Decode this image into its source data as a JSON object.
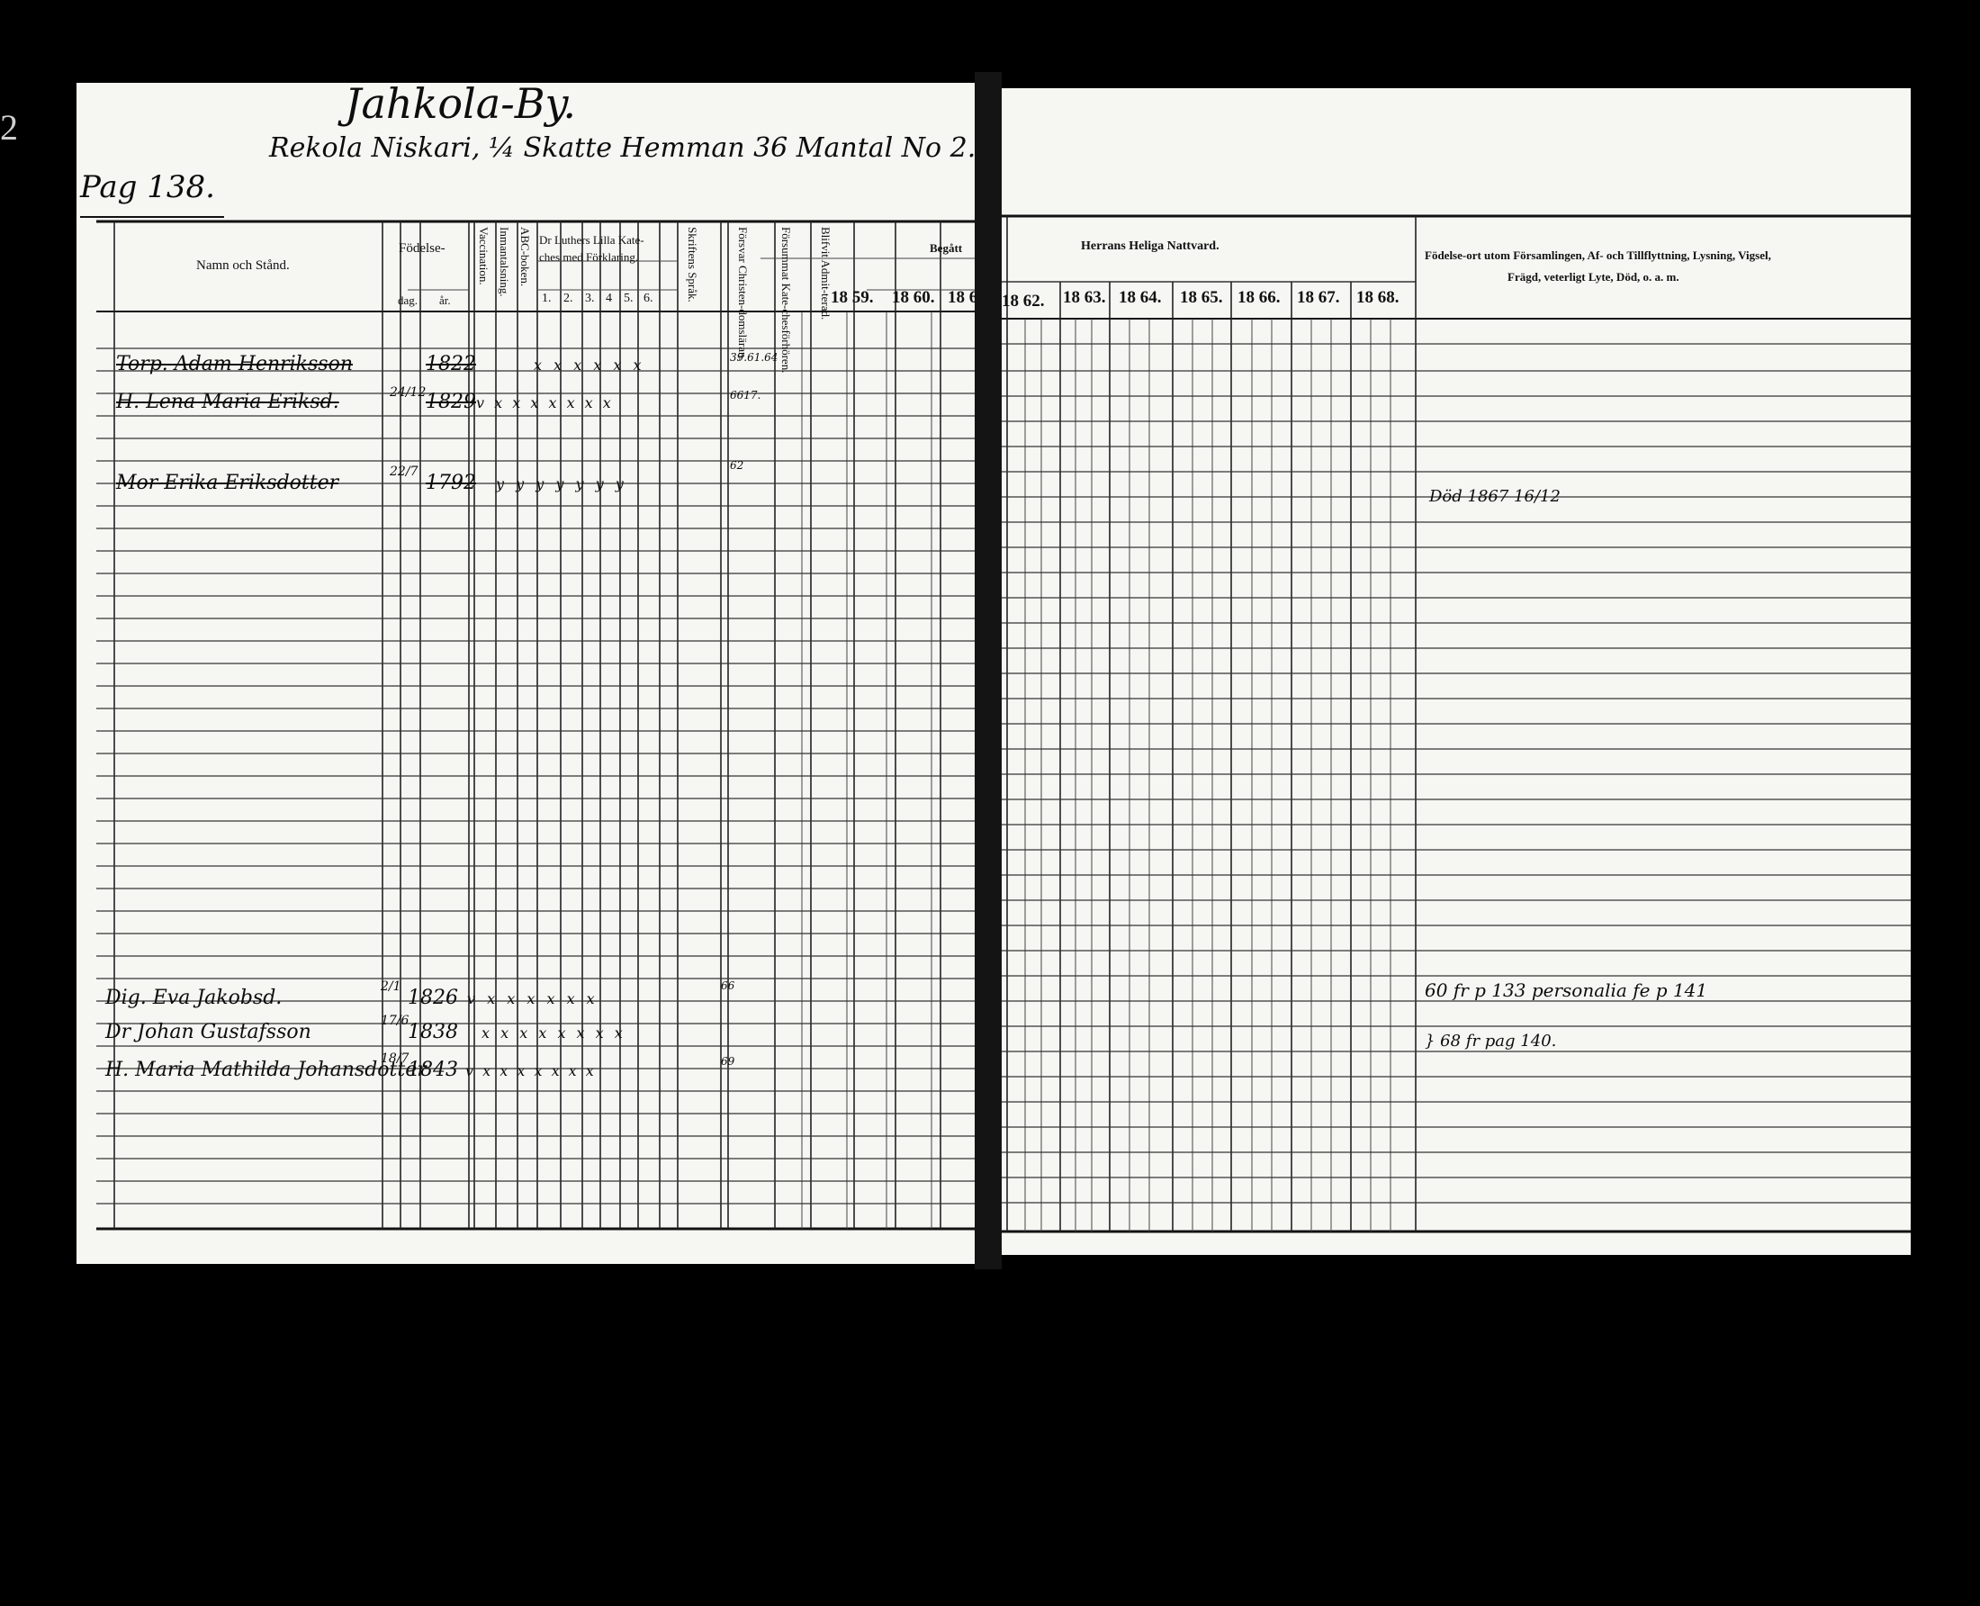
{
  "margin_mark": "2",
  "left_page": {
    "village": "Jahkola-By.",
    "farm": "Rekola Niskari, ¼ Skatte Hemman 36 Mantal No 2.",
    "page_ref": "Pag 138.",
    "headers": {
      "name": "Namn och Stånd.",
      "birth": "Födelse-",
      "day": "dag.",
      "year": "år.",
      "vaccination": "Vaccination.",
      "inmantalsning": "Inmantalsning.",
      "abc": "ABC-boken.",
      "luther": "Dr Luthers Lilla Katechesmed Förklaring.",
      "luther_line1": "Dr Luthers Lilla Kate-",
      "luther_line2": "ches med Förklaring.",
      "luther_cols": [
        "1.",
        "2.",
        "3.",
        "4",
        "5.",
        "6."
      ],
      "skriftens": "Skriftens Språk.",
      "forsvar": "Försvar Christen-domsläran.",
      "forsummat": "Försummat Kate-chesförhören.",
      "blifvit": "Blifvit Admit-terad."
    },
    "people": [
      {
        "name": "Torp. Adam Henriksson",
        "day": "",
        "year": "1822",
        "marks": "x x x x x x"
      },
      {
        "name": "H. Lena Maria Eriksd.",
        "day": "24/12",
        "year": "1829",
        "marks": "v x  x x x x x x"
      },
      {
        "name": "Mor Erika Eriksdotter",
        "day": "22/7",
        "year": "1792",
        "marks": "y  y y y y y y"
      },
      {
        "name": "Dig. Eva Jakobsd.",
        "day": "2/1",
        "year": "1826",
        "marks": "v x  x x x x x"
      },
      {
        "name": "Dr Johan Gustafsson",
        "day": "17/6",
        "year": "1838",
        "marks": "x x x x x x x x"
      },
      {
        "name": "H. Maria Mathilda Johansdotter",
        "day": "18/7",
        "year": "1843",
        "marks": "v x x x x x x x"
      }
    ],
    "side_numbers": [
      "39.61.64",
      "6617.",
      "62",
      "66",
      "69"
    ]
  },
  "right_page": {
    "begatt": "Begått",
    "herrans": "Herrans Heliga Nattvard.",
    "years_left": [
      "18 59.",
      "18 60.",
      "18 6"
    ],
    "years_right": [
      "18 62.",
      "18 63.",
      "18 64.",
      "18 65.",
      "18 66.",
      "18 67.",
      "18 68."
    ],
    "remarks_header_1": "Födelse-ort utom Församlingen, Af- och Tillflyttning, Lysning, Vigsel,",
    "remarks_header_2": "Frägd, veterligt Lyte, Död, o. a. m.",
    "remarks": [
      "Död 1867 16/12",
      "60 fr p 133 personalia fe p 141",
      "} 68 fr pag 140."
    ]
  }
}
